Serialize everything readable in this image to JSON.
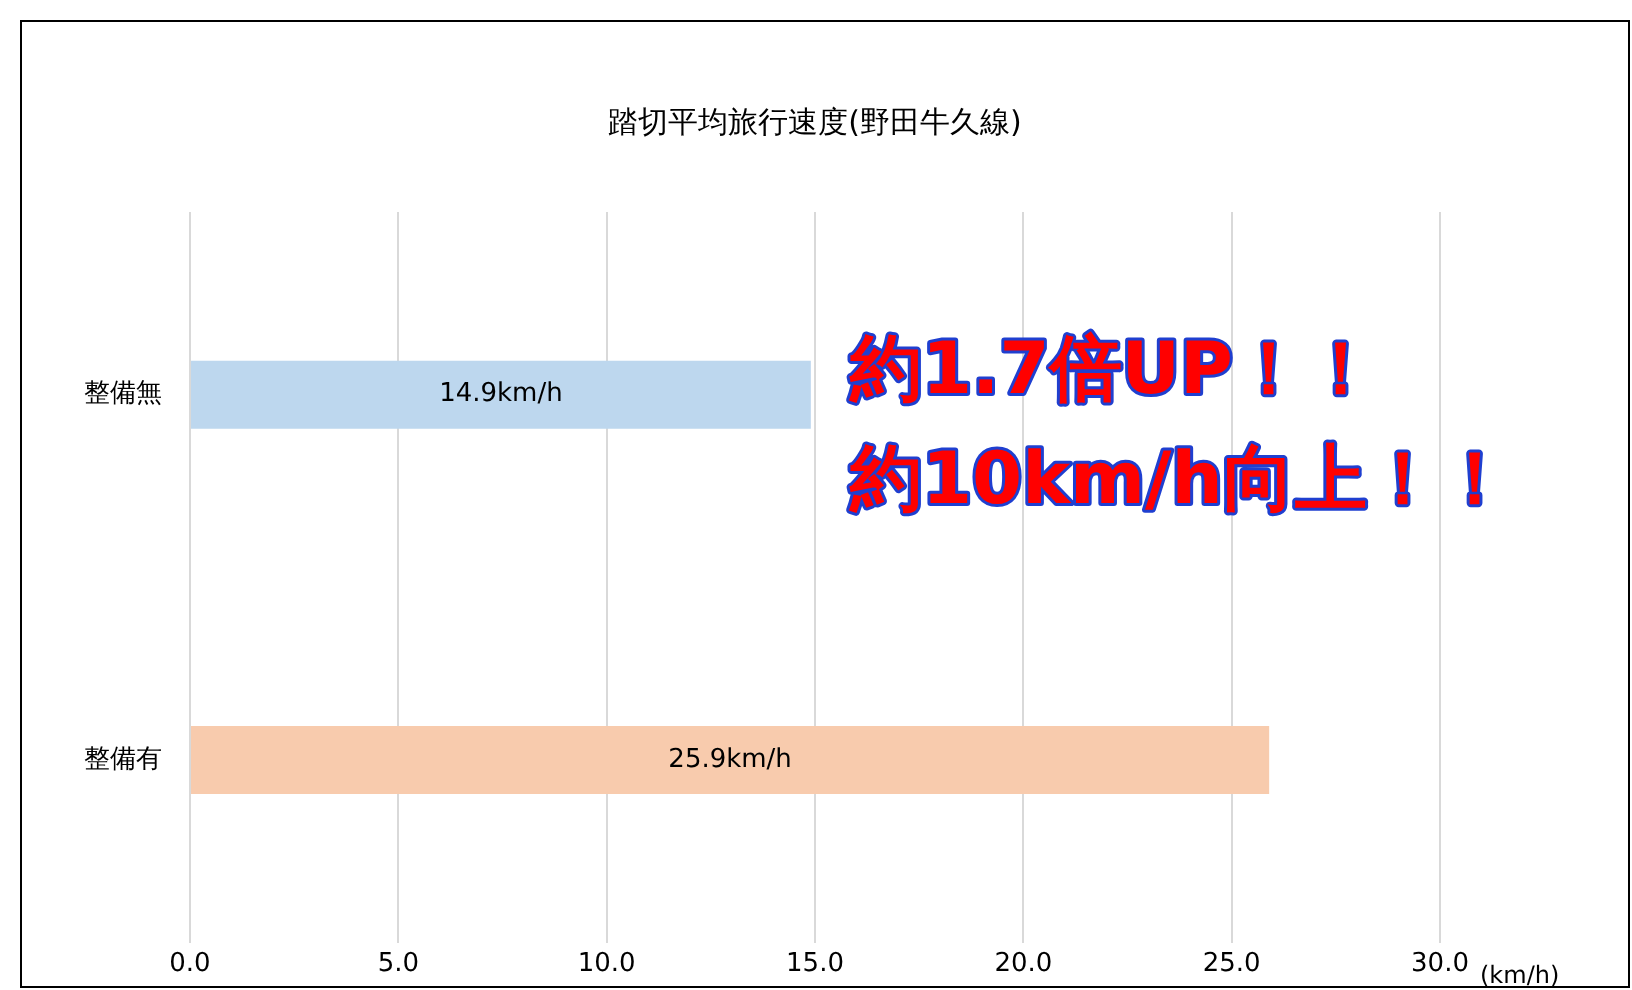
{
  "chart_data": {
    "type": "bar",
    "orientation": "horizontal",
    "title": "踏切平均旅行速度(野田牛久線)",
    "xlabel": "(km/h)",
    "categories": [
      "整備無",
      "整備有"
    ],
    "values": [
      14.9,
      25.9
    ],
    "colors": [
      "#bdd7ee",
      "#f8cbad"
    ],
    "value_labels": [
      "14.9km/h",
      "25.9km/h"
    ],
    "xlim": [
      0,
      30
    ],
    "xticks": [
      {
        "value": 0,
        "label": "0.0"
      },
      {
        "value": 5,
        "label": "5.0"
      },
      {
        "value": 10,
        "label": "10.0"
      },
      {
        "value": 15,
        "label": "15.0"
      },
      {
        "value": 20,
        "label": "20.0"
      },
      {
        "value": 25,
        "label": "25.0"
      },
      {
        "value": 30,
        "label": "30.0"
      }
    ],
    "grid": "x",
    "legend": false,
    "annotations": [
      "約1.7倍UP！！",
      "約10km/h向上！！"
    ]
  }
}
